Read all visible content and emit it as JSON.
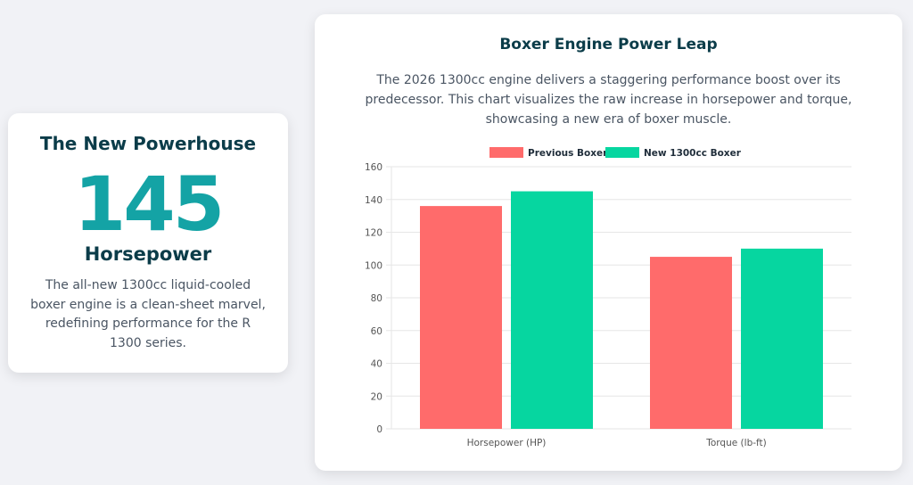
{
  "summary": {
    "title": "The New Powerhouse",
    "number": "145",
    "unit": "Horsepower",
    "description": "The all-new 1300cc liquid-cooled boxer engine is a clean-sheet marvel, redefining performance for the R 1300 series."
  },
  "chart_card": {
    "title": "Boxer Engine Power Leap",
    "description": "The 2026 1300cc engine delivers a staggering performance boost over its predecessor. This chart visualizes the raw increase in horsepower and torque, showcasing a new era of boxer muscle."
  },
  "colors": {
    "previous": "#ff6b6b",
    "new": "#06d6a0",
    "grid": "#e6e6e6",
    "axis_text": "#555555"
  },
  "chart_data": {
    "type": "bar",
    "categories": [
      "Horsepower (HP)",
      "Torque (lb-ft)"
    ],
    "series": [
      {
        "name": "Previous Boxer",
        "values": [
          136,
          105
        ]
      },
      {
        "name": "New 1300cc Boxer",
        "values": [
          145,
          110
        ]
      }
    ],
    "ylim": [
      0,
      160
    ],
    "yticks": [
      0,
      20,
      40,
      60,
      80,
      100,
      120,
      140,
      160
    ],
    "grid": true,
    "legend_position": "top"
  }
}
